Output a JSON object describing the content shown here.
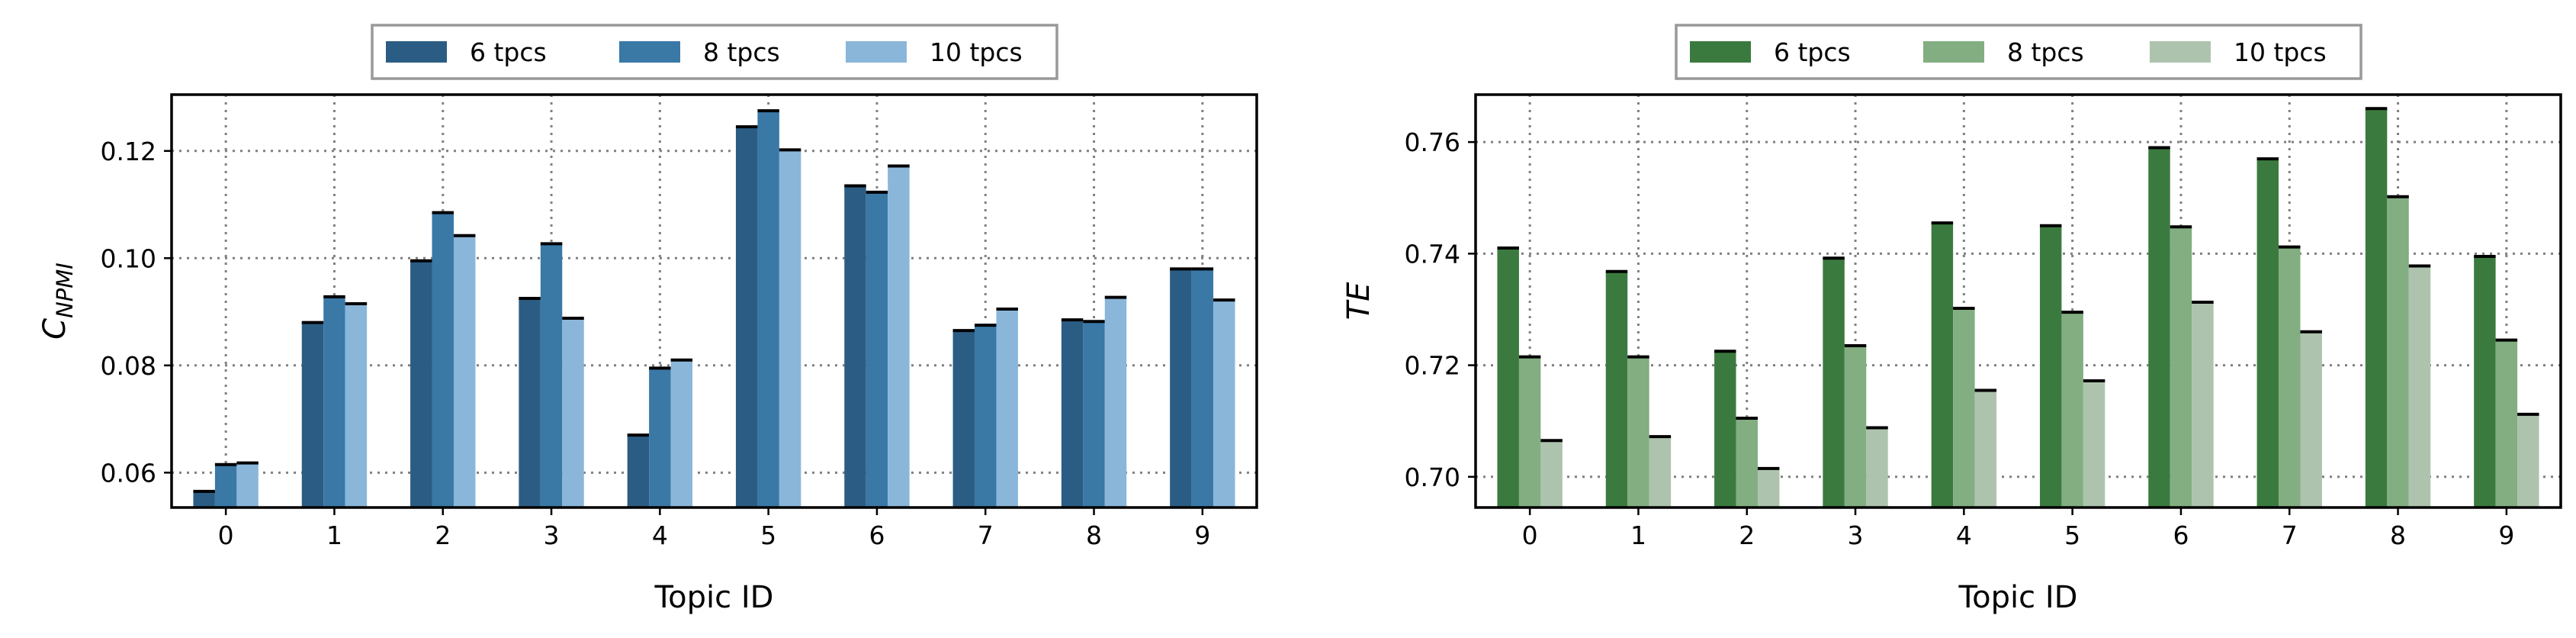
{
  "chart_data": [
    {
      "type": "bar",
      "categories": [
        "0",
        "1",
        "2",
        "3",
        "4",
        "5",
        "6",
        "7",
        "8",
        "9"
      ],
      "series": [
        {
          "name": "6 tpcs",
          "color": "#2b5d84",
          "values": [
            0.0565,
            0.088,
            0.0995,
            0.0925,
            0.067,
            0.1245,
            0.1135,
            0.0865,
            0.0885,
            0.098
          ]
        },
        {
          "name": "8 tpcs",
          "color": "#3a78a6",
          "values": [
            0.0615,
            0.0928,
            0.1085,
            0.1027,
            0.0795,
            0.1275,
            0.1123,
            0.0875,
            0.0882,
            0.098
          ]
        },
        {
          "name": "10 tpcs",
          "color": "#8ab6da",
          "values": [
            0.0618,
            0.0915,
            0.1042,
            0.0888,
            0.081,
            0.1202,
            0.1172,
            0.0905,
            0.0927,
            0.0922
          ]
        }
      ],
      "xlabel": "Topic ID",
      "ylabel_main": "C",
      "ylabel_sub": "NPMI",
      "ylim": [
        0.0535,
        0.1305
      ],
      "yticks": [
        0.06,
        0.08,
        0.1,
        0.12
      ],
      "ytick_labels": [
        "0.06",
        "0.08",
        "0.10",
        "0.12"
      ],
      "grid": true,
      "legend_position": "top-center, outside"
    },
    {
      "type": "bar",
      "categories": [
        "0",
        "1",
        "2",
        "3",
        "4",
        "5",
        "6",
        "7",
        "8",
        "9"
      ],
      "series": [
        {
          "name": "6 tpcs",
          "color": "#3b7a3f",
          "values": [
            0.741,
            0.7368,
            0.7225,
            0.7392,
            0.7455,
            0.745,
            0.759,
            0.757,
            0.766,
            0.7395
          ]
        },
        {
          "name": "8 tpcs",
          "color": "#82ae82",
          "values": [
            0.7215,
            0.7215,
            0.7105,
            0.7235,
            0.7302,
            0.7295,
            0.7448,
            0.7412,
            0.7502,
            0.7245
          ]
        },
        {
          "name": "10 tpcs",
          "color": "#adc3ad",
          "values": [
            0.7065,
            0.7072,
            0.7015,
            0.7088,
            0.7155,
            0.7172,
            0.7313,
            0.726,
            0.7378,
            0.7112
          ]
        }
      ],
      "xlabel": "Topic ID",
      "ylabel_main": "TE",
      "ylabel_sub": "",
      "ylim": [
        0.6945,
        0.7685
      ],
      "yticks": [
        0.7,
        0.72,
        0.74,
        0.76
      ],
      "ytick_labels": [
        "0.70",
        "0.72",
        "0.74",
        "0.76"
      ],
      "grid": true,
      "legend_position": "top-center, outside"
    }
  ]
}
